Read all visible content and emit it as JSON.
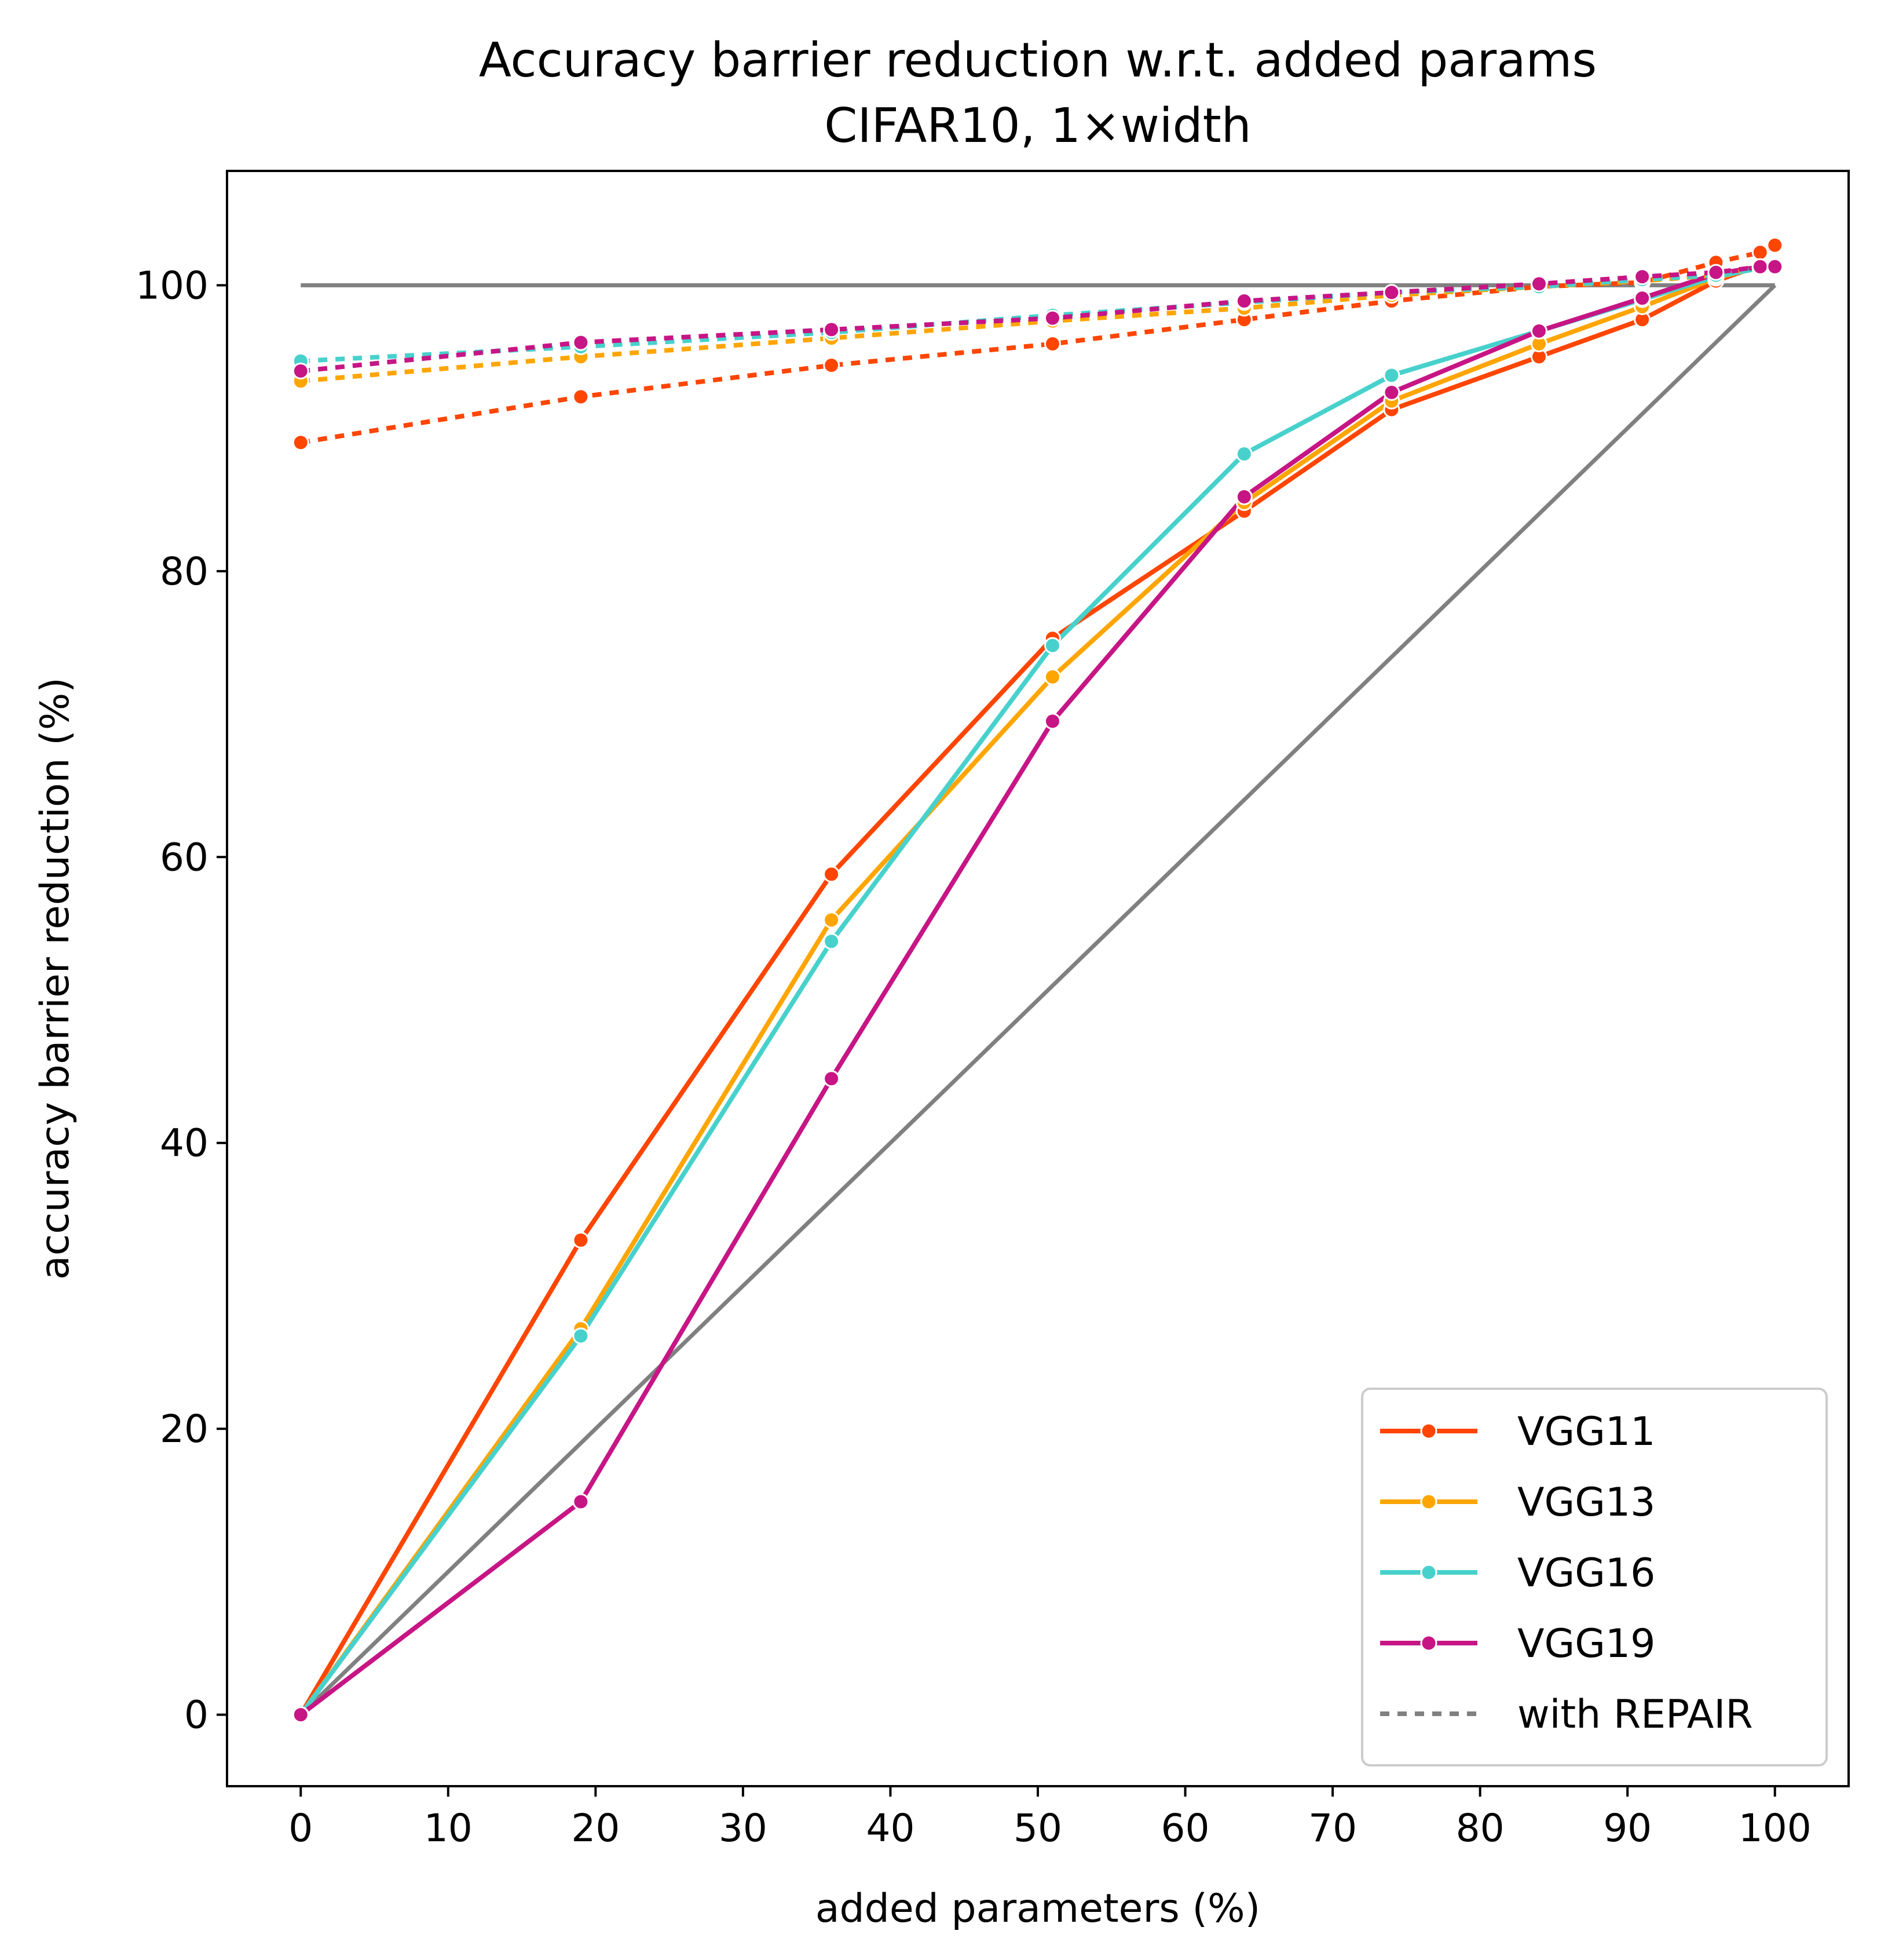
{
  "chart_data": {
    "type": "line",
    "title": "Accuracy barrier reduction w.r.t. added params",
    "subtitle": "CIFAR10, 1×width",
    "xlabel": "added parameters (%)",
    "ylabel": "accuracy barrier reduction (%)",
    "xlim": [
      -5,
      105
    ],
    "ylim": [
      -5,
      108
    ],
    "xticks": [
      "0",
      "10",
      "20",
      "30",
      "40",
      "50",
      "60",
      "70",
      "80",
      "90",
      "100"
    ],
    "yticks": [
      "0",
      "20",
      "40",
      "60",
      "80",
      "100"
    ],
    "grid": false,
    "legend_position": "lower right",
    "legend": [
      {
        "label": "VGG11",
        "color": "#ff4500",
        "style": "solid"
      },
      {
        "label": "VGG13",
        "color": "#ffa500",
        "style": "solid"
      },
      {
        "label": "VGG16",
        "color": "#48d1cc",
        "style": "solid"
      },
      {
        "label": "VGG19",
        "color": "#c71585",
        "style": "solid"
      },
      {
        "label": "with REPAIR",
        "color": "#808080",
        "style": "dotted"
      }
    ],
    "reference_lines": [
      {
        "color": "#808080",
        "points": [
          [
            0,
            100
          ],
          [
            100,
            100
          ]
        ]
      },
      {
        "color": "#808080",
        "points": [
          [
            0,
            0
          ],
          [
            100,
            100
          ]
        ]
      }
    ],
    "series": [
      {
        "name": "VGG11",
        "color": "#ff4500",
        "style": "solid",
        "x": [
          0,
          19,
          36,
          51,
          64,
          74,
          84,
          91,
          96,
          99,
          100
        ],
        "y": [
          0,
          33.2,
          58.8,
          75.3,
          84.2,
          91.3,
          95.0,
          97.6,
          100.3,
          101.4,
          101.5
        ]
      },
      {
        "name": "VGG13",
        "color": "#ffa500",
        "style": "solid",
        "x": [
          0,
          19,
          36,
          51,
          64,
          74,
          84,
          91,
          96,
          99,
          100
        ],
        "y": [
          0,
          27.0,
          55.6,
          72.6,
          84.8,
          91.9,
          95.9,
          98.5,
          100.5,
          101.3,
          101.4
        ]
      },
      {
        "name": "VGG16",
        "color": "#48d1cc",
        "style": "solid",
        "x": [
          0,
          19,
          36,
          51,
          64,
          74,
          84,
          91,
          96,
          99,
          100
        ],
        "y": [
          0,
          26.5,
          54.1,
          74.8,
          88.2,
          93.7,
          96.8,
          99.0,
          100.6,
          101.2,
          101.3
        ]
      },
      {
        "name": "VGG19",
        "color": "#c71585",
        "style": "solid",
        "x": [
          0,
          19,
          36,
          51,
          64,
          74,
          84,
          91,
          96,
          99,
          100
        ],
        "y": [
          0,
          14.9,
          44.5,
          69.5,
          85.2,
          92.5,
          96.8,
          99.1,
          100.8,
          101.3,
          101.3
        ]
      },
      {
        "name": "VGG11",
        "color": "#ff4500",
        "style": "dotted",
        "x": [
          0,
          19,
          36,
          51,
          64,
          74,
          84,
          91,
          96,
          99,
          100
        ],
        "y": [
          89.0,
          92.2,
          94.4,
          95.9,
          97.6,
          98.9,
          99.9,
          100.2,
          101.6,
          102.3,
          102.8
        ]
      },
      {
        "name": "VGG13",
        "color": "#ffa500",
        "style": "dotted",
        "x": [
          0,
          19,
          36,
          51,
          64,
          74,
          84,
          91,
          96,
          99,
          100
        ],
        "y": [
          93.3,
          95.0,
          96.3,
          97.5,
          98.4,
          99.3,
          99.9,
          100.3,
          100.7,
          101.2,
          101.4
        ]
      },
      {
        "name": "VGG16",
        "color": "#48d1cc",
        "style": "dotted",
        "x": [
          0,
          19,
          36,
          51,
          64,
          74,
          84,
          91,
          96,
          99,
          100
        ],
        "y": [
          94.7,
          95.7,
          96.7,
          97.9,
          98.8,
          99.5,
          99.9,
          100.4,
          100.7,
          101.2,
          101.3
        ]
      },
      {
        "name": "VGG19",
        "color": "#c71585",
        "style": "dotted",
        "x": [
          0,
          19,
          36,
          51,
          64,
          74,
          84,
          91,
          96,
          99,
          100
        ],
        "y": [
          94.0,
          96.0,
          96.9,
          97.7,
          98.9,
          99.5,
          100.1,
          100.6,
          100.9,
          101.3,
          101.3
        ]
      }
    ]
  }
}
